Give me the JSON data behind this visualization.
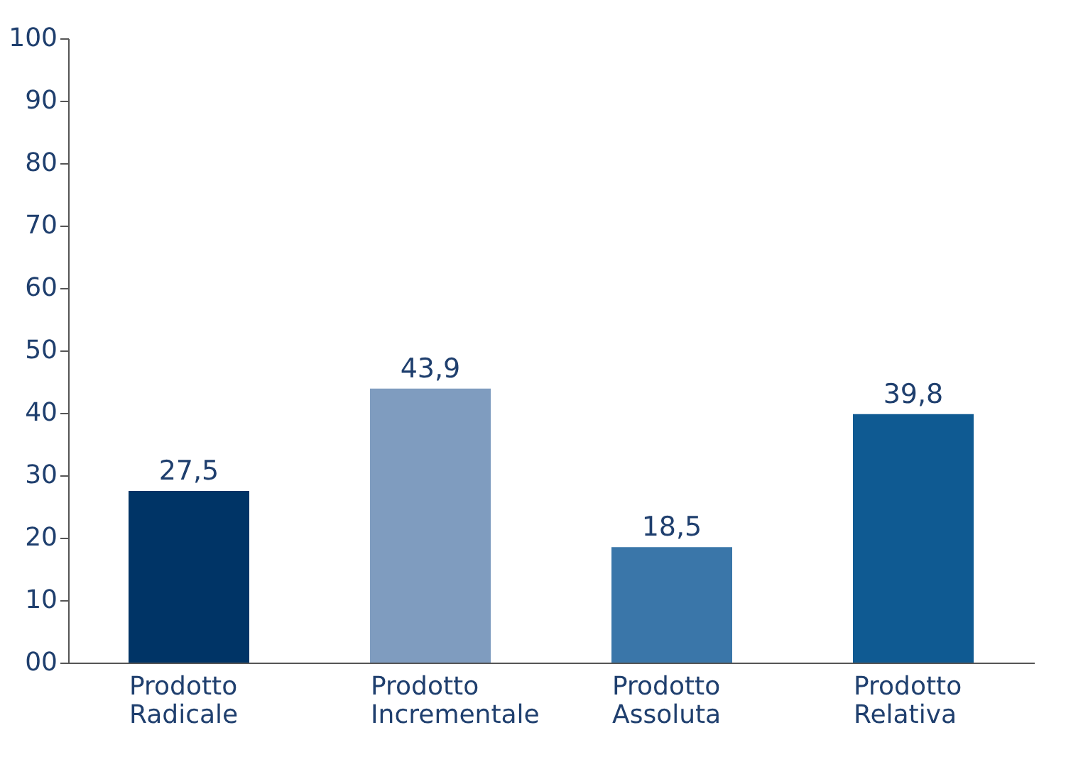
{
  "chart_data": {
    "type": "bar",
    "categories": [
      "Prodotto Radicale",
      "Prodotto Incrementale",
      "Prodotto Assoluta",
      "Prodotto Relativa"
    ],
    "values": [
      27.5,
      43.9,
      18.5,
      39.8
    ],
    "colors": [
      "#003466",
      "#7f9cbf",
      "#3a76a9",
      "#0f5a92"
    ],
    "value_labels": [
      "27,5",
      "43,9",
      "18,5",
      "39,8"
    ],
    "ylim": [
      0,
      100
    ],
    "yticks": [
      {
        "value": 0,
        "label": "00"
      },
      10,
      20,
      30,
      40,
      50,
      60,
      70,
      80,
      90,
      100
    ],
    "grid": false
  }
}
